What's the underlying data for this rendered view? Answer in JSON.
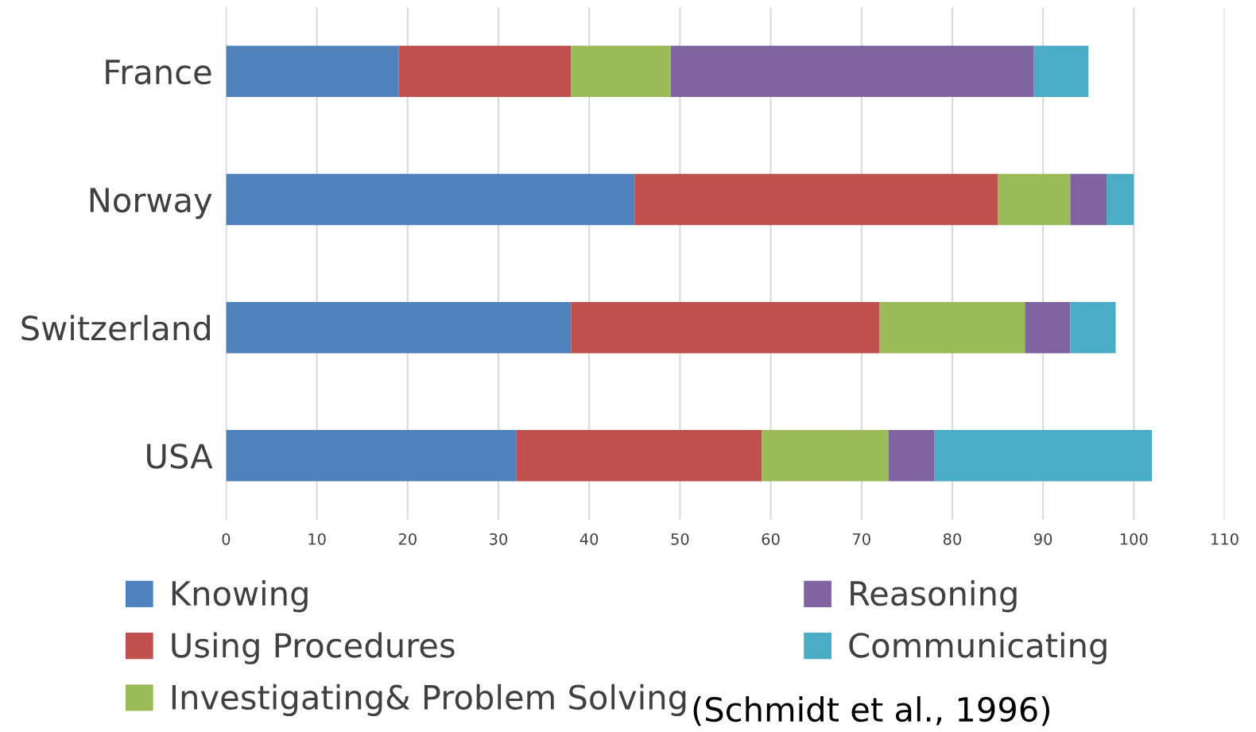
{
  "chart_data": {
    "type": "bar",
    "orientation": "horizontal",
    "stacked": true,
    "categories": [
      "France",
      "Norway",
      "Switzerland",
      "USA"
    ],
    "series": [
      {
        "name": "Knowing",
        "color": "#4f81bd",
        "values": [
          19,
          45,
          38,
          32
        ]
      },
      {
        "name": "Using Procedures",
        "color": "#c0504d",
        "values": [
          19,
          40,
          34,
          27
        ]
      },
      {
        "name": "Investigating& Problem Solving",
        "color": "#9bbb59",
        "values": [
          11,
          8,
          16,
          14
        ]
      },
      {
        "name": "Reasoning",
        "color": "#8064a2",
        "values": [
          40,
          4,
          5,
          5
        ]
      },
      {
        "name": "Communicating",
        "color": "#4bacc6",
        "values": [
          6,
          3,
          5,
          24
        ]
      }
    ],
    "xlim": [
      0,
      110
    ],
    "xticks": [
      0,
      10,
      20,
      30,
      40,
      50,
      60,
      70,
      80,
      90,
      100,
      110
    ],
    "grid": "x",
    "legend": "bottom",
    "annotations": [
      "(Schmidt et al., 1996)"
    ]
  }
}
